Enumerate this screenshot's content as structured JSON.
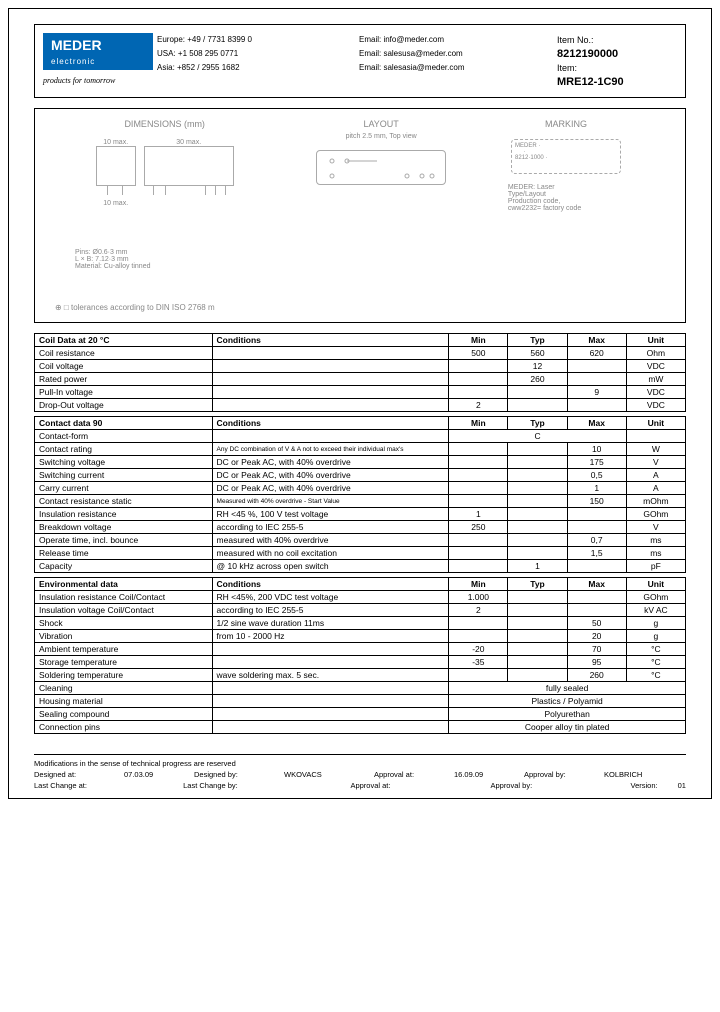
{
  "logo": {
    "name": "MEDER",
    "sub": "electronic",
    "tagline": "products for tomorrow"
  },
  "contacts": {
    "europe": "Europe: +49 / 7731 8399 0",
    "europe_email": "Email: info@meder.com",
    "usa": "USA: +1 508 295 0771",
    "usa_email": "Email: salesusa@meder.com",
    "asia": "Asia: +852 / 2955 1682",
    "asia_email": "Email: salesasia@meder.com"
  },
  "item": {
    "no_label": "Item No.:",
    "no": "8212190000",
    "item_label": "Item:",
    "item": "MRE12-1C90"
  },
  "diagram": {
    "dim_title": "DIMENSIONS (mm)",
    "lay_title": "LAYOUT",
    "lay_sub": "pitch 2.5 mm, Top view",
    "mark_title": "MARKING",
    "dim_left": "10 max.",
    "dim_top": "30 max.",
    "dim_h": "10 max.",
    "pins_note": "Pins: Ø0.6·3 mm\nL × B: 7.12·3 mm\nMaterial: Cu-alloy tinned",
    "mark_text": "MEDER: Laser\nType/Layout\nProduction code,\ncww2232= factory code",
    "tol": "tolerances according to DIN ISO 2768 m"
  },
  "tables": {
    "coil": {
      "title": "Coil Data at 20 °C",
      "headers": [
        "Conditions",
        "Min",
        "Typ",
        "Max",
        "Unit"
      ],
      "rows": [
        {
          "p": "Coil resistance",
          "c": "",
          "min": "500",
          "typ": "560",
          "max": "620",
          "u": "Ohm"
        },
        {
          "p": "Coil voltage",
          "c": "",
          "min": "",
          "typ": "12",
          "max": "",
          "u": "VDC"
        },
        {
          "p": "Rated power",
          "c": "",
          "min": "",
          "typ": "260",
          "max": "",
          "u": "mW"
        },
        {
          "p": "Pull-In voltage",
          "c": "",
          "min": "",
          "typ": "",
          "max": "9",
          "u": "VDC"
        },
        {
          "p": "Drop-Out voltage",
          "c": "",
          "min": "2",
          "typ": "",
          "max": "",
          "u": "VDC"
        }
      ]
    },
    "contact": {
      "title": "Contact data  90",
      "rows": [
        {
          "p": "Contact-form",
          "c": "",
          "span": "C",
          "u": ""
        },
        {
          "p": "Contact rating",
          "c": "Any DC combination of V & A not to exceed their individual max's",
          "min": "",
          "typ": "",
          "max": "10",
          "u": "W"
        },
        {
          "p": "Switching voltage",
          "c": "DC or Peak AC, with 40% overdrive",
          "min": "",
          "typ": "",
          "max": "175",
          "u": "V"
        },
        {
          "p": "Switching current",
          "c": "DC or Peak AC, with 40% overdrive",
          "min": "",
          "typ": "",
          "max": "0,5",
          "u": "A"
        },
        {
          "p": "Carry current",
          "c": "DC or Peak AC, with 40% overdrive",
          "min": "",
          "typ": "",
          "max": "1",
          "u": "A"
        },
        {
          "p": "Contact resistance static",
          "c": "Measured with 40% overdrive - Start Value",
          "min": "",
          "typ": "",
          "max": "150",
          "u": "mOhm"
        },
        {
          "p": "Insulation resistance",
          "c": "RH <45 %, 100 V test voltage",
          "min": "1",
          "typ": "",
          "max": "",
          "u": "GOhm"
        },
        {
          "p": "Breakdown voltage",
          "c": "according to IEC 255-5",
          "min": "250",
          "typ": "",
          "max": "",
          "u": "V"
        },
        {
          "p": "Operate time, incl. bounce",
          "c": "measured with 40% overdrive",
          "min": "",
          "typ": "",
          "max": "0,7",
          "u": "ms"
        },
        {
          "p": "Release time",
          "c": "measured with no coil excitation",
          "min": "",
          "typ": "",
          "max": "1,5",
          "u": "ms"
        },
        {
          "p": "Capacity",
          "c": "@ 10 kHz across open switch",
          "min": "",
          "typ": "1",
          "max": "",
          "u": "pF"
        }
      ]
    },
    "env": {
      "title": "Environmental data",
      "rows": [
        {
          "p": "Insulation resistance Coil/Contact",
          "c": "RH <45%, 200 VDC test voltage",
          "min": "1.000",
          "typ": "",
          "max": "",
          "u": "GOhm"
        },
        {
          "p": "Insulation voltage Coil/Contact",
          "c": "according to IEC 255-5",
          "min": "2",
          "typ": "",
          "max": "",
          "u": "kV AC"
        },
        {
          "p": "Shock",
          "c": "1/2 sine wave duration 11ms",
          "min": "",
          "typ": "",
          "max": "50",
          "u": "g"
        },
        {
          "p": "Vibration",
          "c": "from 10 - 2000 Hz",
          "min": "",
          "typ": "",
          "max": "20",
          "u": "g"
        },
        {
          "p": "Ambient temperature",
          "c": "",
          "min": "-20",
          "typ": "",
          "max": "70",
          "u": "°C"
        },
        {
          "p": "Storage temperature",
          "c": "",
          "min": "-35",
          "typ": "",
          "max": "95",
          "u": "°C"
        },
        {
          "p": "Soldering temperature",
          "c": "wave soldering max. 5 sec.",
          "min": "",
          "typ": "",
          "max": "260",
          "u": "°C"
        },
        {
          "p": "Cleaning",
          "span": "fully sealed"
        },
        {
          "p": "Housing material",
          "span": "Plastics / Polyamid"
        },
        {
          "p": "Sealing compound",
          "span": "Polyurethan"
        },
        {
          "p": "Connection pins",
          "span": "Cooper alloy tin plated"
        }
      ]
    }
  },
  "footer": {
    "mod": "Modifications in the sense of technical progress are reserved",
    "designed_at_lbl": "Designed at:",
    "designed_at": "07.03.09",
    "designed_by_lbl": "Designed by:",
    "designed_by": "WKOVACS",
    "approval_at_lbl": "Approval at:",
    "approval_at": "16.09.09",
    "approval_by_lbl": "Approval by:",
    "approval_by": "KOLBRICH",
    "last_change_at_lbl": "Last Change at:",
    "last_change_by_lbl": "Last Change by:",
    "approval_at2_lbl": "Approval at:",
    "approval_by2_lbl": "Approval by:",
    "version_lbl": "Version:",
    "version": "01"
  }
}
